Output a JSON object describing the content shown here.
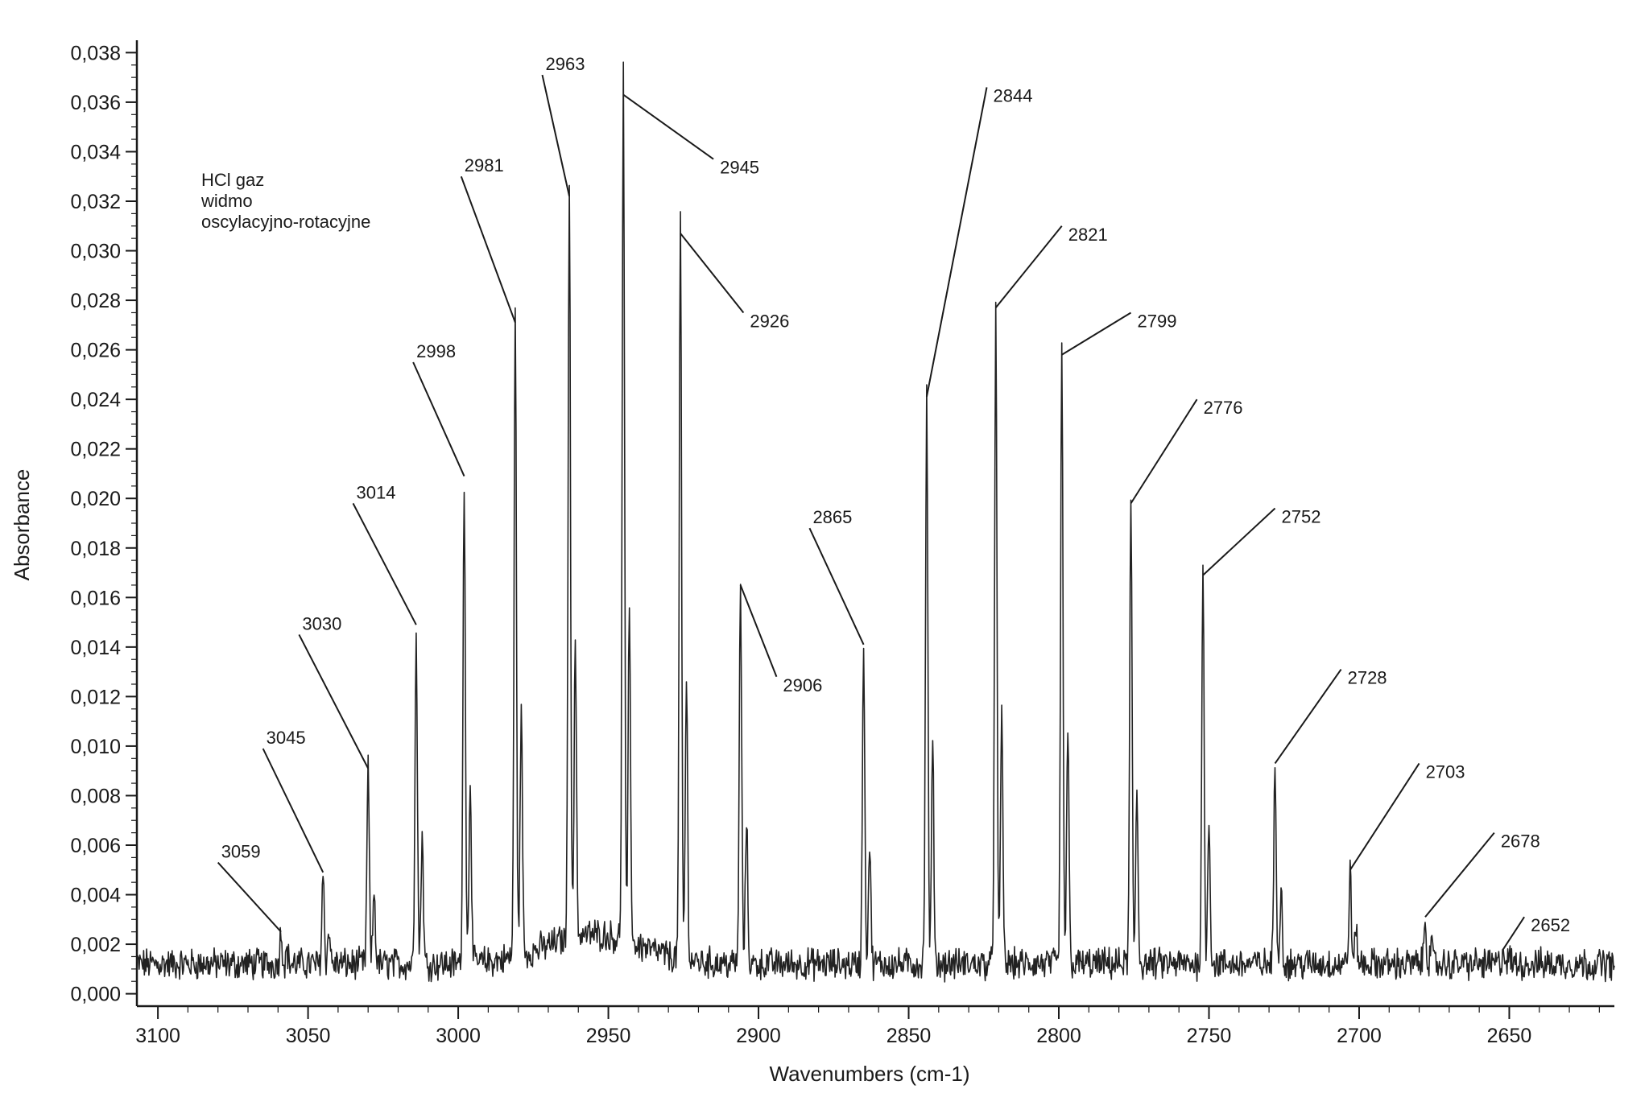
{
  "chart_data": {
    "type": "line",
    "title": "",
    "annotation_lines": [
      "HCl gaz",
      "widmo",
      "oscylacyjno-rotacyjne"
    ],
    "xlabel": "Wavenumbers (cm-1)",
    "ylabel": "Absorbance",
    "xlim": [
      3107,
      2615
    ],
    "ylim": [
      -0.0005,
      0.0385
    ],
    "x_reversed": true,
    "x_ticks": [
      3100,
      3050,
      3000,
      2950,
      2900,
      2850,
      2800,
      2750,
      2700,
      2650
    ],
    "x_tick_labels": [
      "3100",
      "3050",
      "3000",
      "2950",
      "2900",
      "2850",
      "2800",
      "2750",
      "2700",
      "2650"
    ],
    "y_ticks": [
      0,
      0.002,
      0.004,
      0.006,
      0.008,
      0.01,
      0.012,
      0.014,
      0.016,
      0.018,
      0.02,
      0.022,
      0.024,
      0.026,
      0.028,
      0.03,
      0.032,
      0.034,
      0.036,
      0.038
    ],
    "y_tick_labels": [
      "0,000",
      "0,002",
      "0,004",
      "0,006",
      "0,008",
      "0,010",
      "0,012",
      "0,014",
      "0,016",
      "0,018",
      "0,020",
      "0,022",
      "0,024",
      "0,026",
      "0,028",
      "0,030",
      "0,032",
      "0,034",
      "0,036",
      "0,038"
    ],
    "baseline": 0.0012,
    "peaks": [
      {
        "label": "3059",
        "x": 3059,
        "y": 0.0025,
        "label_x": 3080,
        "label_y": 0.0053
      },
      {
        "label": "3045",
        "x": 3045,
        "y": 0.0049,
        "label_x": 3065,
        "label_y": 0.0099
      },
      {
        "label": "3030",
        "x": 3030,
        "y": 0.0091,
        "label_x": 3053,
        "label_y": 0.0145
      },
      {
        "label": "3014",
        "x": 3014,
        "y": 0.0149,
        "label_x": 3035,
        "label_y": 0.0198
      },
      {
        "label": "2998",
        "x": 2998,
        "y": 0.0209,
        "label_x": 3015,
        "label_y": 0.0255
      },
      {
        "label": "2981",
        "x": 2981,
        "y": 0.0271,
        "label_x": 2999,
        "label_y": 0.033
      },
      {
        "label": "2963",
        "x": 2963,
        "y": 0.0322,
        "label_x": 2972,
        "label_y": 0.0371
      },
      {
        "label": "2945",
        "x": 2945,
        "y": 0.0363,
        "label_x": 2915,
        "label_y": 0.0337
      },
      {
        "label": "2926",
        "x": 2926,
        "y": 0.0307,
        "label_x": 2905,
        "label_y": 0.0275
      },
      {
        "label": "2906",
        "x": 2906,
        "y": 0.0165,
        "label_x": 2894,
        "label_y": 0.0128
      },
      {
        "label": "2865",
        "x": 2865,
        "y": 0.0141,
        "label_x": 2883,
        "label_y": 0.0188
      },
      {
        "label": "2844",
        "x": 2844,
        "y": 0.0241,
        "label_x": 2824,
        "label_y": 0.0366
      },
      {
        "label": "2821",
        "x": 2821,
        "y": 0.0277,
        "label_x": 2799,
        "label_y": 0.031
      },
      {
        "label": "2799",
        "x": 2799,
        "y": 0.0258,
        "label_x": 2776,
        "label_y": 0.0275
      },
      {
        "label": "2776",
        "x": 2776,
        "y": 0.0198,
        "label_x": 2754,
        "label_y": 0.024
      },
      {
        "label": "2752",
        "x": 2752,
        "y": 0.0169,
        "label_x": 2728,
        "label_y": 0.0196
      },
      {
        "label": "2728",
        "x": 2728,
        "y": 0.0093,
        "label_x": 2706,
        "label_y": 0.0131
      },
      {
        "label": "2703",
        "x": 2703,
        "y": 0.005,
        "label_x": 2680,
        "label_y": 0.0093
      },
      {
        "label": "2678",
        "x": 2678,
        "y": 0.0031,
        "label_x": 2655,
        "label_y": 0.0065
      },
      {
        "label": "2652",
        "x": 2652,
        "y": 0.0018,
        "label_x": 2645,
        "label_y": 0.0031
      }
    ]
  }
}
